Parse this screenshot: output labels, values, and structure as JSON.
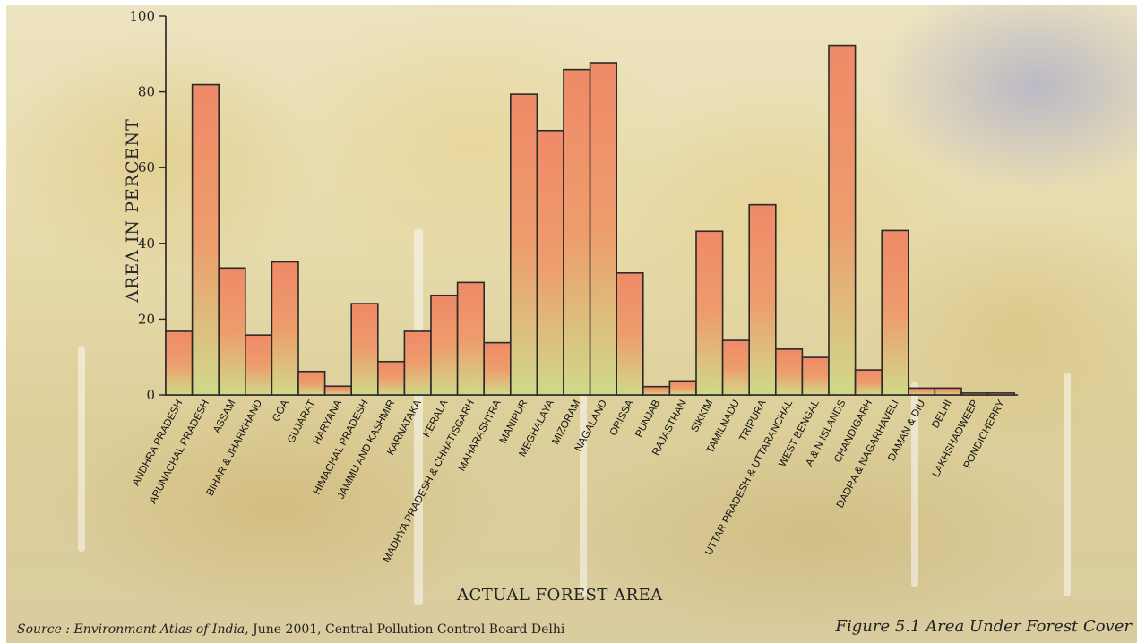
{
  "chart_data": {
    "type": "bar",
    "title": "",
    "xlabel": "ACTUAL FOREST AREA",
    "ylabel": "AREA IN PERCENT",
    "ylim": [
      0,
      100
    ],
    "yticks": [
      0,
      20,
      40,
      60,
      80,
      100
    ],
    "grid": false,
    "legend": "none",
    "categories": [
      "ANDHRA PRADESH",
      "ARUNACHAL PRADESH",
      "ASSAM",
      "BIHAR & JHARKHAND",
      "GOA",
      "GUJARAT",
      "HARYANA",
      "HIMACHAL PRADESH",
      "JAMMU AND KASHMIR",
      "KARNATAKA",
      "KERALA",
      "MADHYA PRADESH & CHHATISGARH",
      "MAHARASHTRA",
      "MANIPUR",
      "MEGHALAYA",
      "MIZORAM",
      "NAGALAND",
      "ORISSA",
      "PUNJAB",
      "RAJASTHAN",
      "SIKKIM",
      "TAMILNADU",
      "TRIPURA",
      "UTTAR PRADESH & UTTARANCHAL",
      "WEST BENGAL",
      "A & N ISLANDS",
      "CHANDIGARH",
      "DADRA & NAGARHAVELI",
      "DAMAN & DIU",
      "DELHI",
      "LAKHSHADWEEP",
      "PONDICHERRY"
    ],
    "values": [
      16.8,
      81.9,
      33.5,
      15.8,
      35.1,
      6.2,
      2.3,
      24.1,
      8.8,
      16.8,
      26.3,
      29.7,
      13.8,
      79.4,
      69.8,
      85.9,
      87.7,
      32.2,
      2.2,
      3.7,
      43.2,
      14.4,
      50.2,
      12.1,
      9.9,
      92.3,
      6.6,
      43.4,
      1.8,
      1.8,
      0.5,
      0.5
    ],
    "bar_color_top": "#ef8a68",
    "bar_color_bottom": "#cfd98a"
  },
  "caption": {
    "source_prefix": "Source : ",
    "source_title": "Environment Atlas of India",
    "source_rest": ", June 2001, Central Pollution Control Board Delhi",
    "figure_title": "Figure 5.1 Area Under Forest Cover"
  }
}
